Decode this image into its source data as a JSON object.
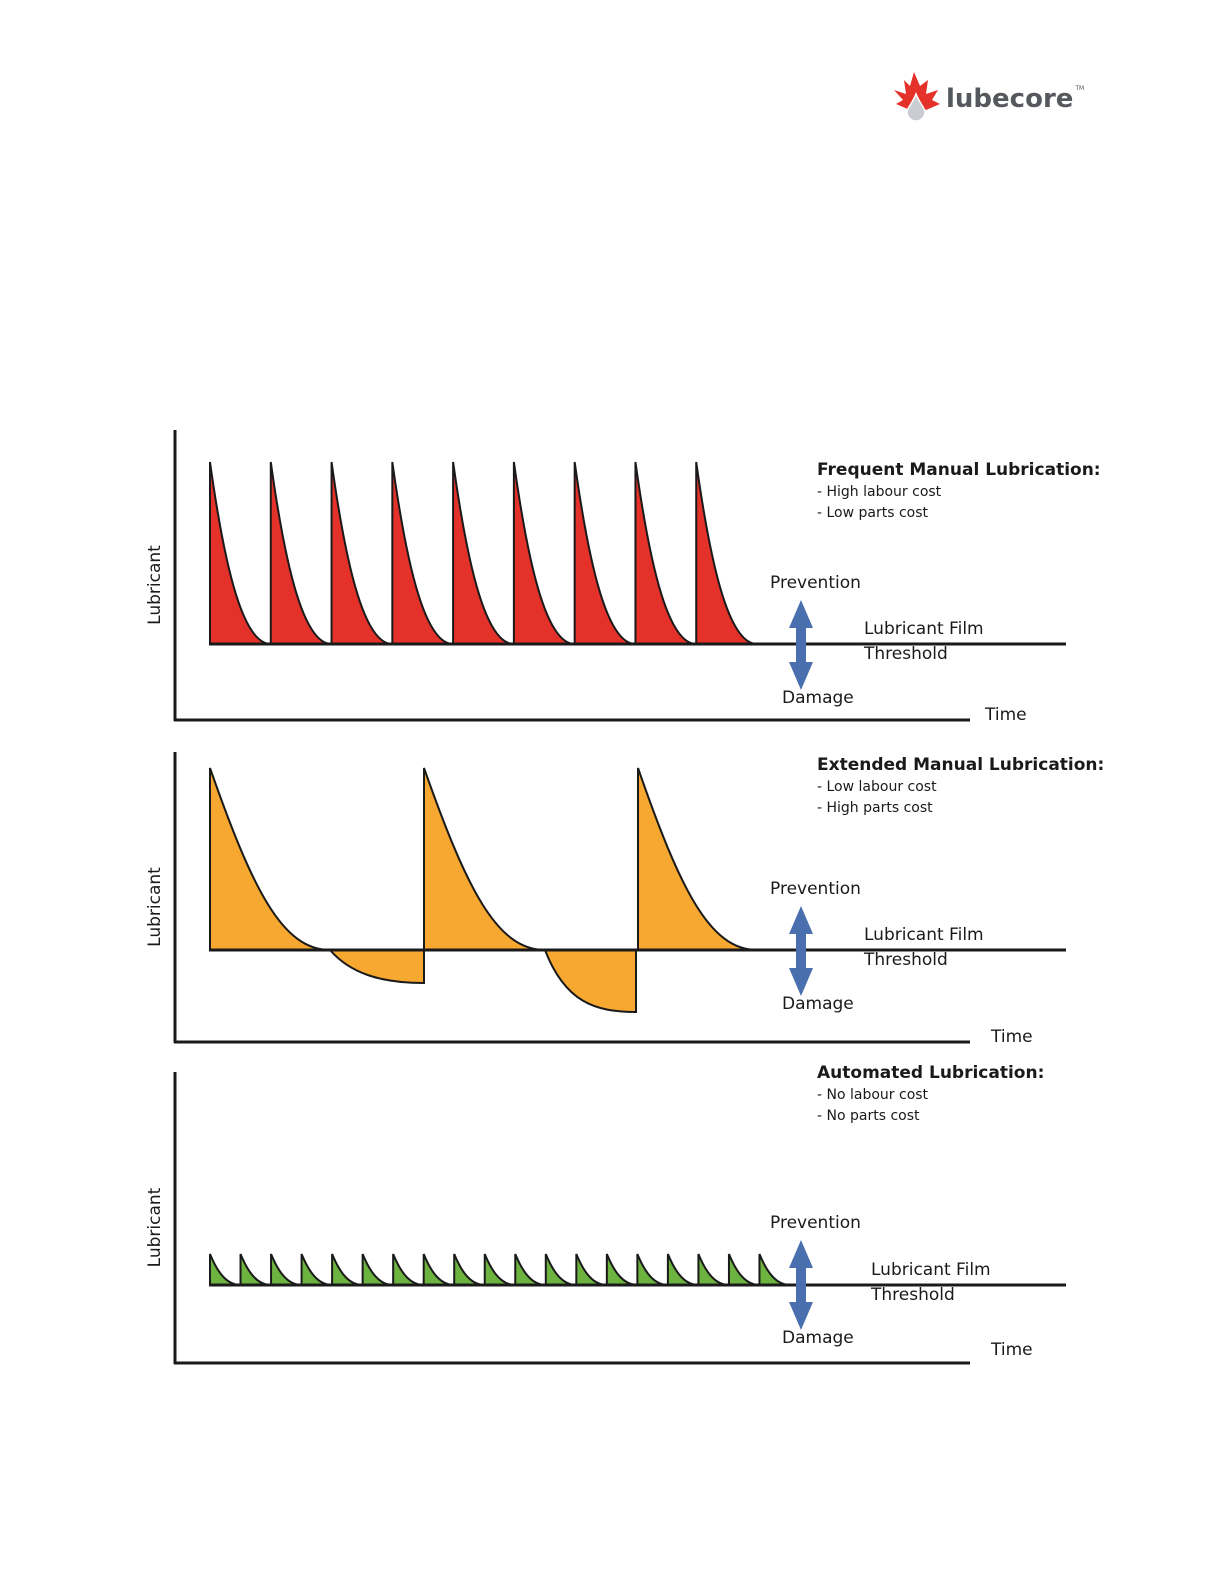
{
  "logo": {
    "text": "lubecore",
    "tm": "TM"
  },
  "colors": {
    "red": "#e4322b",
    "orange": "#f7a831",
    "green": "#6db33f",
    "arrow": "#4a6fae",
    "axis": "#1a1a1a"
  },
  "panels": [
    {
      "title": "Frequent Manual Lubrication:",
      "bullets": [
        "- High labour cost",
        "- Low parts cost"
      ],
      "ylabel": "Lubricant",
      "xlabel": "Time",
      "prevention": "Prevention",
      "damage": "Damage",
      "threshold_line1": "Lubricant Film",
      "threshold_line2": "Threshold",
      "cycles": 9
    },
    {
      "title": "Extended Manual Lubrication:",
      "bullets": [
        "- Low labour cost",
        "- High parts cost"
      ],
      "ylabel": "Lubricant",
      "xlabel": "Time",
      "prevention": "Prevention",
      "damage": "Damage",
      "threshold_line1": "Lubricant Film",
      "threshold_line2": "Threshold",
      "cycles": 3
    },
    {
      "title": "Automated Lubrication:",
      "bullets": [
        "- No labour cost",
        "- No parts cost"
      ],
      "ylabel": "Lubricant",
      "xlabel": "Time",
      "prevention": "Prevention",
      "damage": "Damage",
      "threshold_line1": "Lubricant Film",
      "threshold_line2": "Threshold",
      "cycles": 19
    }
  ]
}
